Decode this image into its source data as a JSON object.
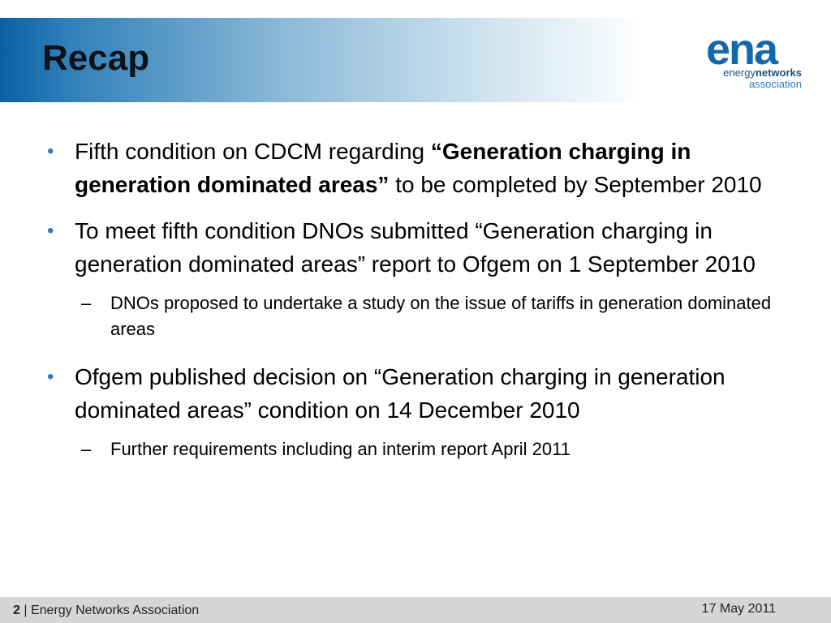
{
  "slide": {
    "title": "Recap"
  },
  "logo": {
    "mark": "ena",
    "line1_normal": "energy",
    "line1_bold": "networks",
    "line2": "association",
    "color": "#1668ad"
  },
  "bullets": [
    {
      "text_before": "Fifth condition on CDCM regarding ",
      "text_bold": "“Generation charging in generation dominated areas”",
      "text_after": " to be completed by September 2010"
    },
    {
      "text": "To meet fifth condition DNOs submitted “Generation charging in generation dominated areas” report to Ofgem on 1 September 2010",
      "sub": "DNOs proposed to undertake a study on the issue of tariffs in generation dominated areas"
    },
    {
      "text": "Ofgem published decision on “Generation charging in generation dominated areas” condition on 14 December 2010",
      "sub": "Further requirements including an interim report April 2011"
    }
  ],
  "markers": {
    "bullet": "•",
    "dash": "–"
  },
  "footer": {
    "page_number": "2",
    "separator": "|",
    "organization": "Energy Networks Association",
    "date": "17 May 2011"
  },
  "colors": {
    "accent": "#2a7fc0",
    "title_gradient_start": "#0a5fa3",
    "footer_bg": "#d6d6d6"
  }
}
